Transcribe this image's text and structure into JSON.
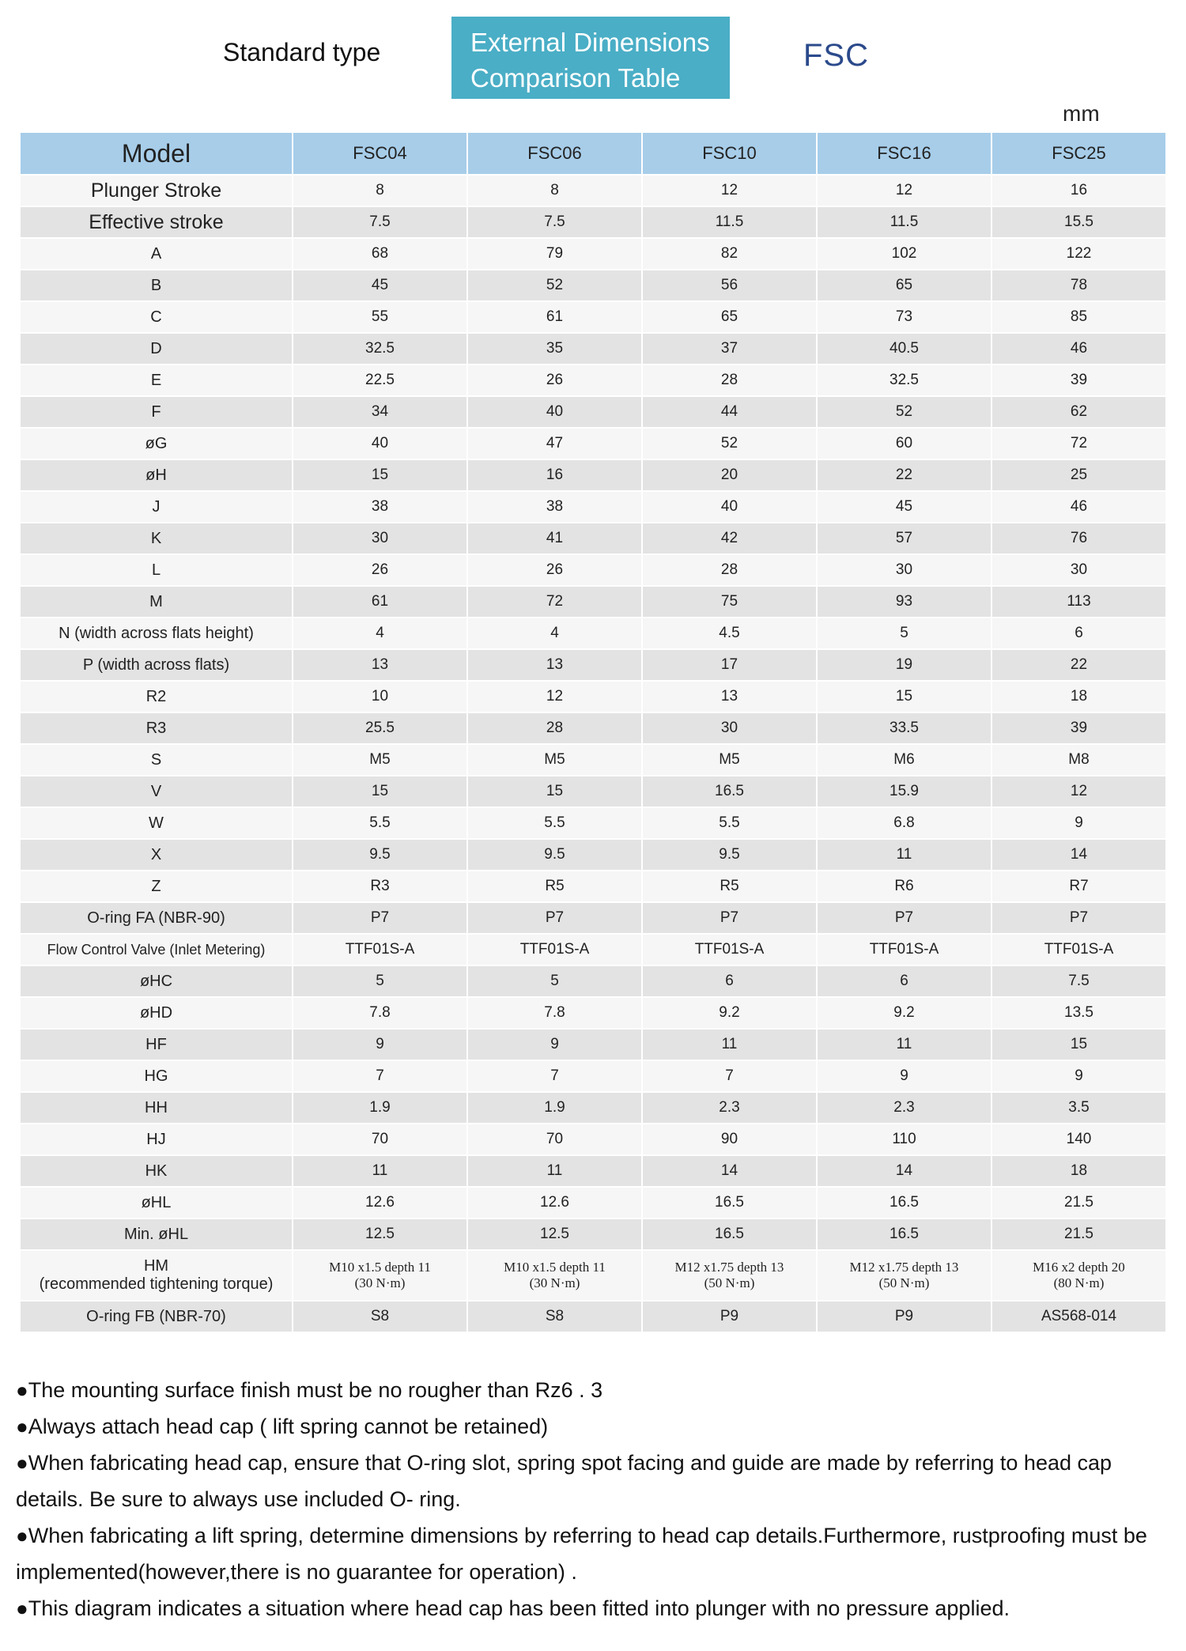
{
  "header": {
    "standard_type": "Standard type",
    "title_line1": "External Dimensions",
    "title_line2": "Comparison Table",
    "model_code": "FSC",
    "unit": "mm"
  },
  "table": {
    "header_label": "Model",
    "models": [
      "FSC04",
      "FSC06",
      "FSC10",
      "FSC16",
      "FSC25"
    ],
    "rows": [
      {
        "label": "Plunger Stroke",
        "values": [
          "8",
          "8",
          "12",
          "12",
          "16"
        ]
      },
      {
        "label": "Effective stroke",
        "values": [
          "7.5",
          "7.5",
          "11.5",
          "11.5",
          "15.5"
        ]
      },
      {
        "label": "A",
        "values": [
          "68",
          "79",
          "82",
          "102",
          "122"
        ]
      },
      {
        "label": "B",
        "values": [
          "45",
          "52",
          "56",
          "65",
          "78"
        ]
      },
      {
        "label": "C",
        "values": [
          "55",
          "61",
          "65",
          "73",
          "85"
        ]
      },
      {
        "label": "D",
        "values": [
          "32.5",
          "35",
          "37",
          "40.5",
          "46"
        ]
      },
      {
        "label": "E",
        "values": [
          "22.5",
          "26",
          "28",
          "32.5",
          "39"
        ]
      },
      {
        "label": "F",
        "values": [
          "34",
          "40",
          "44",
          "52",
          "62"
        ]
      },
      {
        "label": "øG",
        "values": [
          "40",
          "47",
          "52",
          "60",
          "72"
        ]
      },
      {
        "label": "øH",
        "values": [
          "15",
          "16",
          "20",
          "22",
          "25"
        ]
      },
      {
        "label": "J",
        "values": [
          "38",
          "38",
          "40",
          "45",
          "46"
        ]
      },
      {
        "label": "K",
        "values": [
          "30",
          "41",
          "42",
          "57",
          "76"
        ]
      },
      {
        "label": "L",
        "values": [
          "26",
          "26",
          "28",
          "30",
          "30"
        ]
      },
      {
        "label": "M",
        "values": [
          "61",
          "72",
          "75",
          "93",
          "113"
        ]
      },
      {
        "label": "N (width across flats height)",
        "values": [
          "4",
          "4",
          "4.5",
          "5",
          "6"
        ]
      },
      {
        "label": "P (width across flats)",
        "values": [
          "13",
          "13",
          "17",
          "19",
          "22"
        ]
      },
      {
        "label": "R2",
        "values": [
          "10",
          "12",
          "13",
          "15",
          "18"
        ]
      },
      {
        "label": "R3",
        "values": [
          "25.5",
          "28",
          "30",
          "33.5",
          "39"
        ]
      },
      {
        "label": "S",
        "values": [
          "M5",
          "M5",
          "M5",
          "M6",
          "M8"
        ]
      },
      {
        "label": "V",
        "values": [
          "15",
          "15",
          "16.5",
          "15.9",
          "12"
        ]
      },
      {
        "label": "W",
        "values": [
          "5.5",
          "5.5",
          "5.5",
          "6.8",
          "9"
        ]
      },
      {
        "label": "X",
        "values": [
          "9.5",
          "9.5",
          "9.5",
          "11",
          "14"
        ]
      },
      {
        "label": "Z",
        "values": [
          "R3",
          "R5",
          "R5",
          "R6",
          "R7"
        ]
      },
      {
        "label": "O-ring FA (NBR-90)",
        "values": [
          "P7",
          "P7",
          "P7",
          "P7",
          "P7"
        ]
      },
      {
        "label": "Flow Control Valve (Inlet Metering)",
        "values": [
          "TTF01S-A",
          "TTF01S-A",
          "TTF01S-A",
          "TTF01S-A",
          "TTF01S-A"
        ]
      },
      {
        "label": "øHC",
        "values": [
          "5",
          "5",
          "6",
          "6",
          "7.5"
        ]
      },
      {
        "label": "øHD",
        "values": [
          "7.8",
          "7.8",
          "9.2",
          "9.2",
          "13.5"
        ]
      },
      {
        "label": "HF",
        "values": [
          "9",
          "9",
          "11",
          "11",
          "15"
        ]
      },
      {
        "label": "HG",
        "values": [
          "7",
          "7",
          "7",
          "9",
          "9"
        ]
      },
      {
        "label": "HH",
        "values": [
          "1.9",
          "1.9",
          "2.3",
          "2.3",
          "3.5"
        ]
      },
      {
        "label": "HJ",
        "values": [
          "70",
          "70",
          "90",
          "110",
          "140"
        ]
      },
      {
        "label": "HK",
        "values": [
          "11",
          "11",
          "14",
          "14",
          "18"
        ]
      },
      {
        "label": "øHL",
        "values": [
          "12.6",
          "12.6",
          "16.5",
          "16.5",
          "21.5"
        ]
      },
      {
        "label": "Min. øHL",
        "values": [
          "12.5",
          "12.5",
          "16.5",
          "16.5",
          "21.5"
        ]
      }
    ],
    "hm_row": {
      "label_line1": "HM",
      "label_line2": "(recommended tightening torque)",
      "values": [
        {
          "spec": "M10 x1.5 depth 11",
          "torque": "(30 N·m)"
        },
        {
          "spec": "M10 x1.5 depth 11",
          "torque": "(30 N·m)"
        },
        {
          "spec": "M12 x1.75 depth 13",
          "torque": "(50 N·m)"
        },
        {
          "spec": "M12 x1.75 depth 13",
          "torque": "(50 N·m)"
        },
        {
          "spec": "M16 x2 depth 20",
          "torque": "(80 N·m)"
        }
      ]
    },
    "oring_fb": {
      "label": "O-ring FB (NBR-70)",
      "values": [
        "S8",
        "S8",
        "P9",
        "P9",
        "AS568-014"
      ]
    }
  },
  "notes": [
    "The mounting surface finish must be no rougher than Rz6 . 3",
    "Always attach head cap ( lift spring cannot be retained)",
    "When fabricating head cap, ensure that O-ring slot, spring spot facing and guide are made by referring to head cap details. Be sure to always use included O- ring.",
    "When fabricating a lift spring, determine dimensions by referring to head cap details.Furthermore, rustproofing must be implemented(however,there is no guarantee for operation) .",
    "This diagram indicates a situation where head cap has been fitted into plunger with no pressure applied."
  ],
  "bullet": "●",
  "colors": {
    "title_box": "#4aaec6",
    "model_code": "#2b4a8b",
    "header_row": "#a7cde9",
    "row_light": "#f6f6f6",
    "row_dark": "#e3e3e3"
  }
}
